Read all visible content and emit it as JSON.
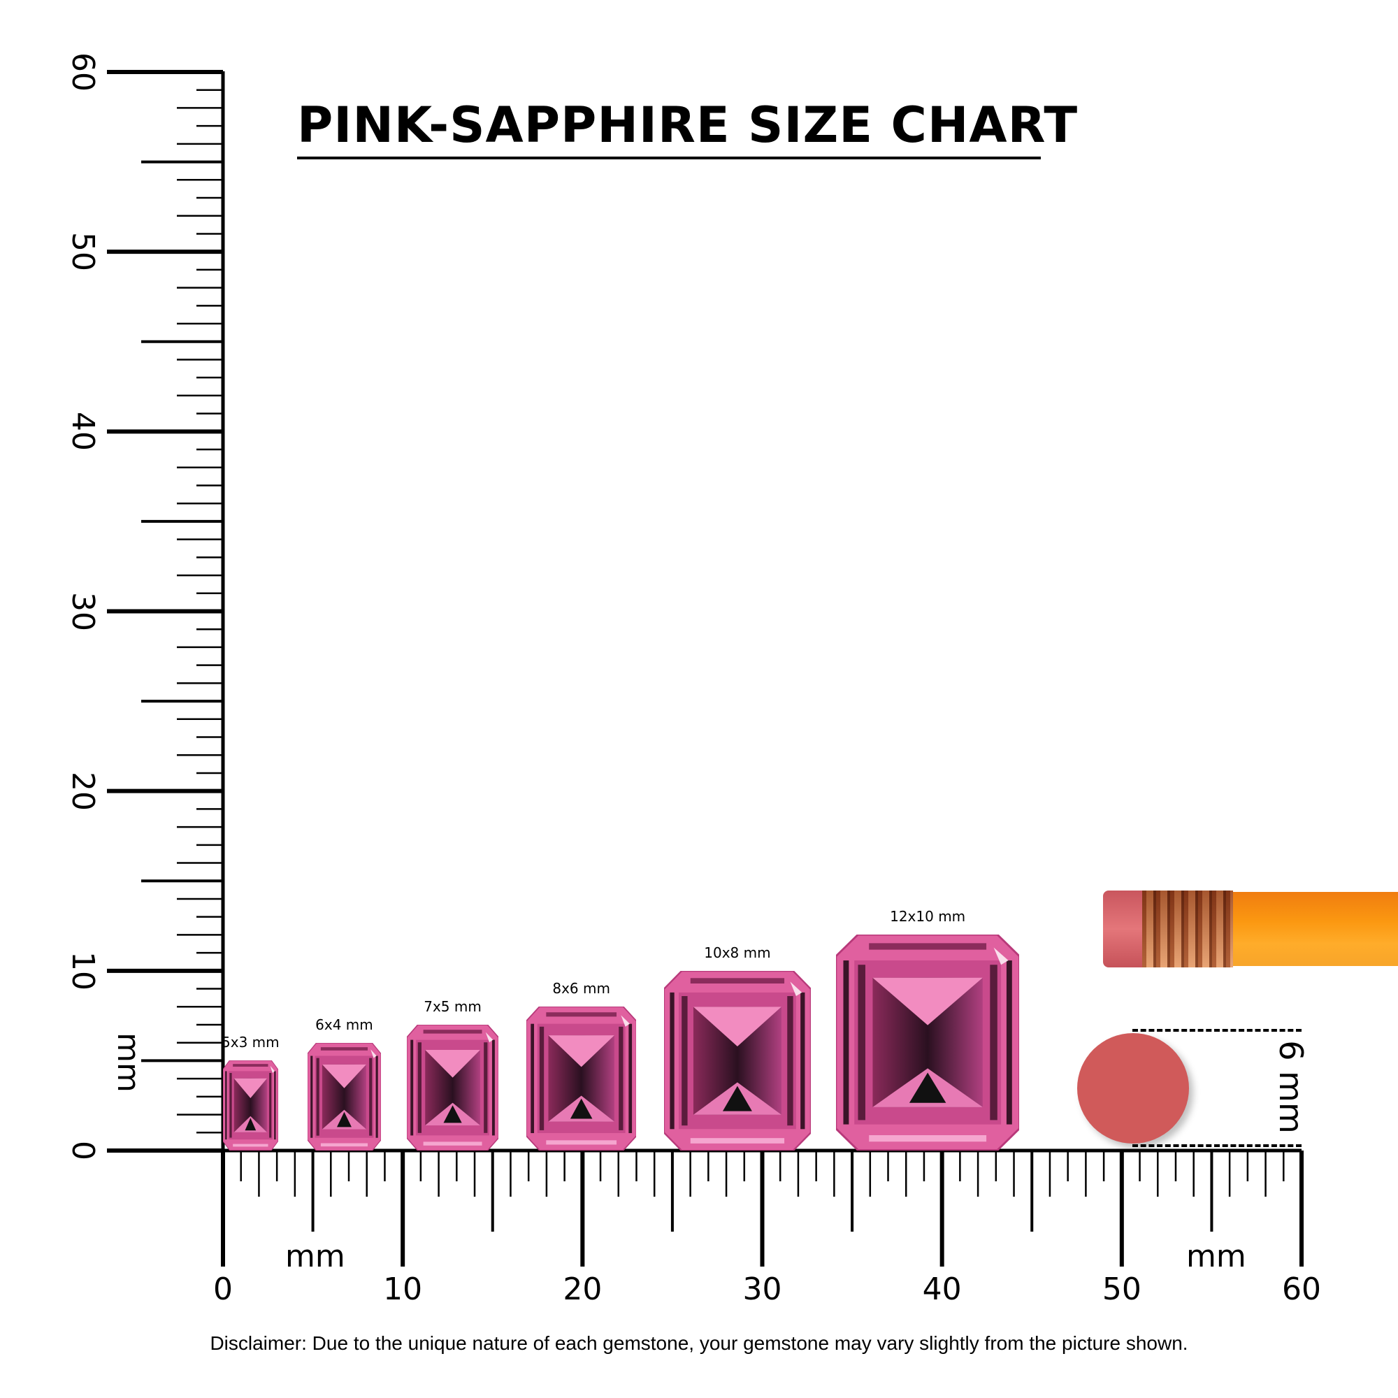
{
  "title": "PINK-SAPPHIRE SIZE CHART",
  "vertical_ruler": {
    "ticks": [
      "0",
      "10",
      "20",
      "30",
      "40",
      "50",
      "60"
    ],
    "unit": "mm",
    "max_mm": 60
  },
  "horizontal_ruler": {
    "ticks": [
      "0",
      "10",
      "20",
      "30",
      "40",
      "50",
      "60"
    ],
    "unit_left": "mm",
    "unit_right": "mm",
    "max_mm": 60
  },
  "gems": [
    {
      "label": "5x3 mm",
      "length_mm": 5,
      "width_mm": 3
    },
    {
      "label": "6x4 mm",
      "length_mm": 6,
      "width_mm": 4
    },
    {
      "label": "7x5 mm",
      "length_mm": 7,
      "width_mm": 5
    },
    {
      "label": "8x6 mm",
      "length_mm": 8,
      "width_mm": 6
    },
    {
      "label": "10x8 mm",
      "length_mm": 10,
      "width_mm": 8
    },
    {
      "label": "12x10 mm",
      "length_mm": 12,
      "width_mm": 10
    }
  ],
  "gem_color": "#e0609f",
  "eraser_reference": {
    "label": "6 mm",
    "color": "#d05a5a"
  },
  "pencil": {
    "eraser_color": "#d9646a",
    "ferrule_color": "#d7a07a",
    "body_color": "#f99a1c"
  },
  "disclaimer": "Disclaimer: Due to the unique nature of each gemstone, your gemstone may vary slightly from the picture shown."
}
